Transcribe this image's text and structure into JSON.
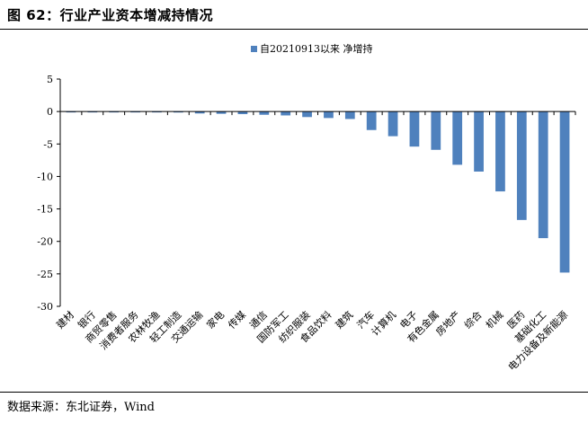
{
  "figure_title": "图 62：行业产业资本增减持情况",
  "source_note": "数据来源：东北证券，Wind",
  "colors": {
    "bar": "#4F81BD",
    "axis": "#000000"
  },
  "chart_data": {
    "type": "bar",
    "title": "",
    "xlabel": "",
    "ylabel": "",
    "ylim": [
      -30,
      5
    ],
    "yticks": [
      5,
      0,
      -5,
      -10,
      -15,
      -20,
      -25,
      -30
    ],
    "grid": false,
    "legend_position": "top-center",
    "categories": [
      "建材",
      "银行",
      "商贸零售",
      "消费者服务",
      "农林牧渔",
      "轻工制造",
      "交通运输",
      "家电",
      "传媒",
      "通信",
      "国防军工",
      "纺织服装",
      "食品饮料",
      "建筑",
      "汽车",
      "计算机",
      "电子",
      "有色金属",
      "房地产",
      "综合",
      "机械",
      "医药",
      "基础化工",
      "电力设备及新能源"
    ],
    "series": [
      {
        "name": "自20210913以来 净增持",
        "values": [
          -0.05,
          -0.05,
          -0.05,
          -0.05,
          -0.1,
          -0.15,
          -0.3,
          -0.35,
          -0.4,
          -0.5,
          -0.6,
          -0.85,
          -1.0,
          -1.15,
          -2.85,
          -3.8,
          -5.4,
          -5.9,
          -8.2,
          -9.25,
          -12.3,
          -16.7,
          -19.5,
          -24.8
        ]
      }
    ]
  }
}
